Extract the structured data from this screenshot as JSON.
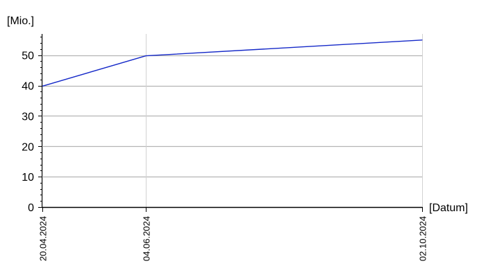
{
  "chart_data": {
    "type": "line",
    "title": "",
    "xlabel": "[Datum]",
    "ylabel": "[Mio.]",
    "x_axis_type": "date",
    "x": [
      "2024-04-20",
      "2024-06-04",
      "2024-10-02"
    ],
    "x_tick_labels": [
      "20.04.2024",
      "04.06.2024",
      "02.10.2024"
    ],
    "y_ticks": [
      0,
      10,
      20,
      30,
      40,
      50
    ],
    "y_tick_labels": [
      "0",
      "10",
      "20",
      "30",
      "40",
      "50"
    ],
    "ylim": [
      0,
      57
    ],
    "grid": true,
    "legend": "none",
    "series": [
      {
        "color": "#1428c8",
        "values": [
          39.8,
          49.8,
          55.0
        ]
      }
    ],
    "colors": {
      "series": "#1428c8",
      "horizontal_grid": "#b4b4b4",
      "vertical_grid": "#d2d2d2",
      "axis": "#000000"
    }
  }
}
